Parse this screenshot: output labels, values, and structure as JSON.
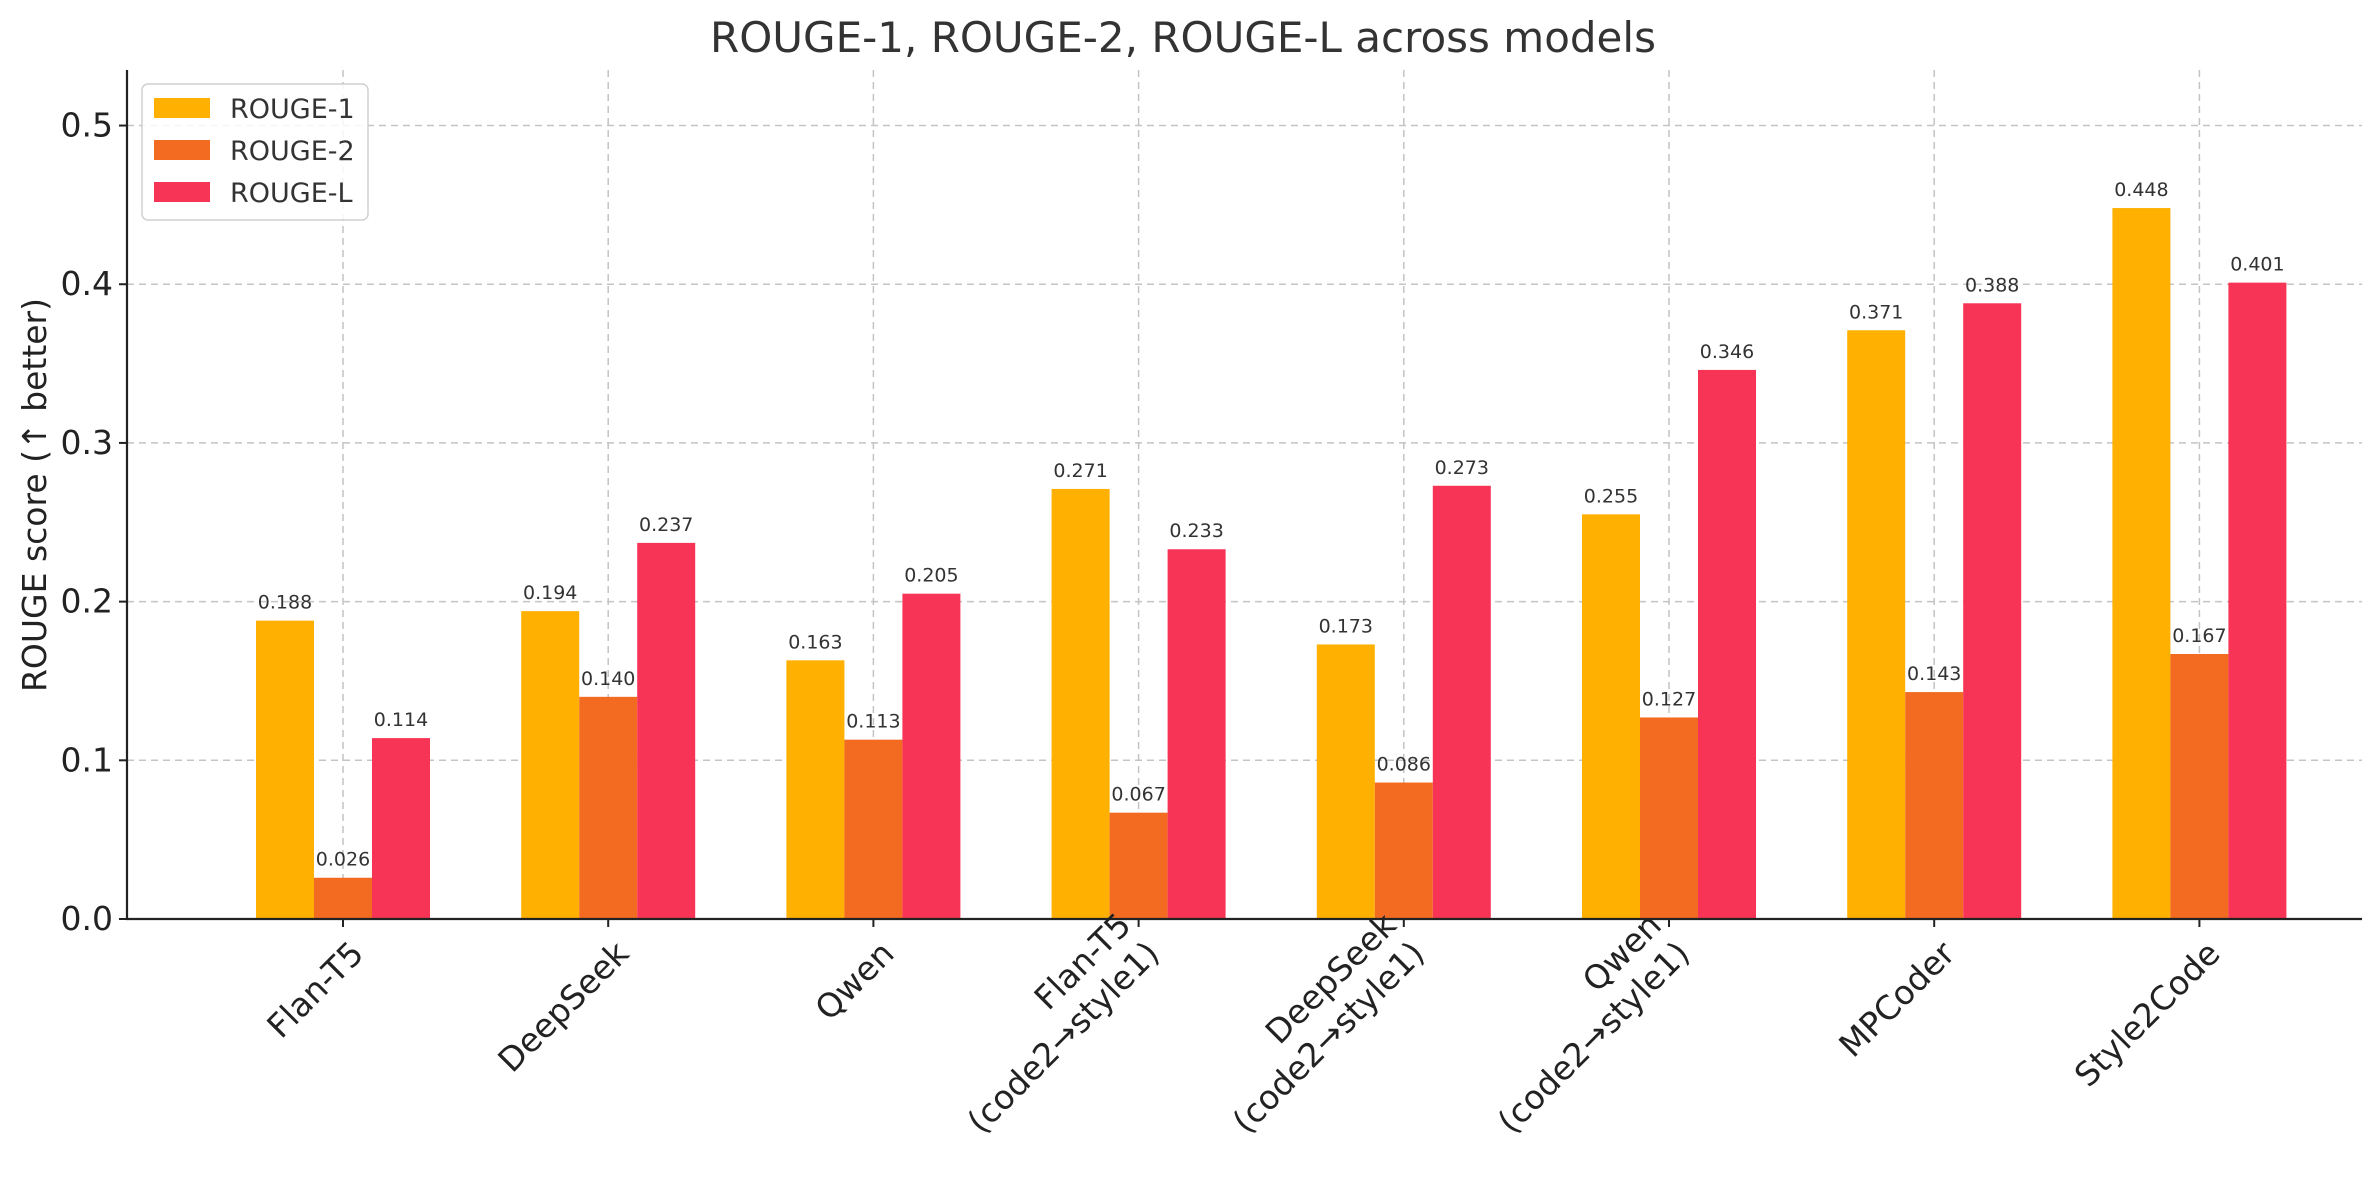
{
  "chart_data": {
    "type": "bar",
    "title": "ROUGE-1, ROUGE-2, ROUGE-L across models",
    "xlabel": "",
    "ylabel": "ROUGE score (↑ better)",
    "ylim": [
      0,
      0.535
    ],
    "yticks": [
      "0.0",
      "0.1",
      "0.2",
      "0.3",
      "0.4",
      "0.5"
    ],
    "ytick_values": [
      0.0,
      0.1,
      0.2,
      0.3,
      0.4,
      0.5
    ],
    "grid": true,
    "legend_position": "top-left",
    "categories": [
      [
        "Flan-T5"
      ],
      [
        "DeepSeek"
      ],
      [
        "Qwen"
      ],
      [
        "Flan-T5",
        "(code2→style1)"
      ],
      [
        "DeepSeek",
        "(code2→style1)"
      ],
      [
        "Qwen",
        "(code2→style1)"
      ],
      [
        "MPCoder"
      ],
      [
        "Style2Code"
      ]
    ],
    "series": [
      {
        "name": "ROUGE-1",
        "color": "#FFB000",
        "values": [
          0.188,
          0.194,
          0.163,
          0.271,
          0.173,
          0.255,
          0.371,
          0.448
        ],
        "labels": [
          "0.188",
          "0.194",
          "0.163",
          "0.271",
          "0.173",
          "0.255",
          "0.371",
          "0.448"
        ]
      },
      {
        "name": "ROUGE-2",
        "color": "#F26B21",
        "values": [
          0.026,
          0.14,
          0.113,
          0.067,
          0.086,
          0.127,
          0.143,
          0.167
        ],
        "labels": [
          "0.026",
          "0.140",
          "0.113",
          "0.067",
          "0.086",
          "0.127",
          "0.143",
          "0.167"
        ]
      },
      {
        "name": "ROUGE-L",
        "color": "#F73455",
        "values": [
          0.114,
          0.237,
          0.205,
          0.233,
          0.273,
          0.346,
          0.388,
          0.401
        ],
        "labels": [
          "0.114",
          "0.237",
          "0.205",
          "0.233",
          "0.273",
          "0.346",
          "0.388",
          "0.401"
        ]
      }
    ]
  }
}
